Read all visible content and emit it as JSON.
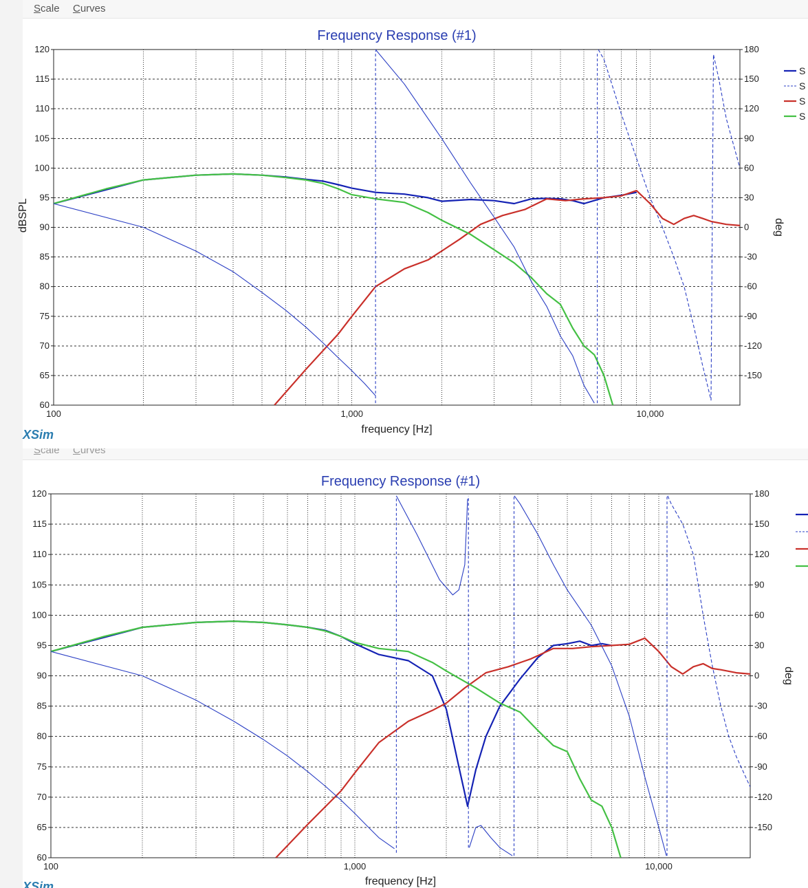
{
  "menu": {
    "scale_label": "Scale",
    "scale_key": "S",
    "scale_rest": "cale",
    "curves_label": "Curves",
    "curves_key": "C",
    "curves_rest": "urves"
  },
  "app_brand_top": "XSim",
  "app_brand_bottom": "XSim",
  "colors": {
    "spl": "#1422b4",
    "phase": "#2a3ec4",
    "red": "#c9302a",
    "green": "#44c044",
    "title": "#2a3eb1"
  },
  "chart_data": [
    {
      "type": "line",
      "title": "Frequency Response (#1)",
      "xlabel": "frequency [Hz]",
      "ylabel": "dBSPL",
      "y2label": "deg",
      "xscale": "log",
      "xlim": [
        100,
        20000
      ],
      "ylim": [
        60,
        120
      ],
      "y2lim": [
        -180,
        180
      ],
      "yticks": [
        60,
        65,
        70,
        75,
        80,
        85,
        90,
        95,
        100,
        105,
        110,
        115,
        120
      ],
      "y2ticks": [
        -150,
        -120,
        -90,
        -60,
        -30,
        0,
        30,
        60,
        90,
        120,
        150,
        180
      ],
      "xticks": [
        {
          "value": 100,
          "label": "100"
        },
        {
          "value": 1000,
          "label": "1,000"
        },
        {
          "value": 10000,
          "label": "10,000"
        }
      ],
      "legend_position": "right",
      "legend_labels": [
        "S",
        "S",
        "S",
        "S"
      ],
      "series": [
        {
          "color": "#1422b4",
          "width": 2.2,
          "dash": "",
          "axis": "left",
          "x": [
            100,
            200,
            300,
            400,
            500,
            600,
            700,
            800,
            900,
            1000,
            1200,
            1500,
            1800,
            2000,
            2500,
            3000,
            3500,
            4000,
            4500,
            5000,
            5500,
            6000,
            7000,
            8000,
            9000
          ],
          "y": [
            94,
            98,
            98.8,
            99,
            98.8,
            98.5,
            98.1,
            97.8,
            97.2,
            96.6,
            95.9,
            95.6,
            95.0,
            94.4,
            94.7,
            94.5,
            94.0,
            94.8,
            94.9,
            94.8,
            94.5,
            94.0,
            95.0,
            95.4,
            95.9
          ]
        },
        {
          "color": "#2a3ec4",
          "width": 1.1,
          "dash": "5,3",
          "axis": "right",
          "x": [
            6700,
            7000,
            8000,
            9000,
            10000,
            11000,
            12000,
            13000,
            14000,
            15000,
            16000,
            16300,
            17000,
            18000,
            20000
          ],
          "y": [
            180,
            170,
            115,
            70,
            30,
            0,
            -30,
            -60,
            -100,
            -140,
            -175,
            175,
            150,
            110,
            60
          ]
        },
        {
          "color": "#c9302a",
          "width": 2.2,
          "dash": "",
          "axis": "left",
          "x": [
            550,
            700,
            900,
            1000,
            1200,
            1500,
            1800,
            2000,
            2300,
            2700,
            3200,
            3800,
            4500,
            5200,
            6000,
            7000,
            8000,
            9000,
            10000,
            11000,
            12000,
            13000,
            14000,
            15000,
            16000,
            18000,
            20000
          ],
          "y": [
            60,
            66,
            72,
            75,
            80,
            83,
            84.5,
            86,
            88,
            90.5,
            92,
            93,
            94.8,
            94.5,
            94.8,
            95.0,
            95.3,
            96.2,
            94.0,
            91.5,
            90.5,
            91.5,
            92.0,
            91.5,
            91.0,
            90.5,
            90.3
          ]
        },
        {
          "color": "#44c044",
          "width": 2.2,
          "dash": "",
          "axis": "left",
          "x": [
            100,
            150,
            200,
            300,
            400,
            500,
            600,
            700,
            800,
            900,
            1000,
            1200,
            1500,
            1800,
            2000,
            2500,
            3000,
            3500,
            4000,
            4500,
            5000,
            5500,
            6000,
            6500,
            7000,
            7500
          ],
          "y": [
            94,
            96.5,
            98,
            98.8,
            99,
            98.8,
            98.4,
            98,
            97.4,
            96.5,
            95.5,
            94.8,
            94.2,
            92.5,
            91.2,
            88.8,
            86.2,
            84.0,
            81.5,
            78.8,
            77.0,
            73.0,
            70.0,
            68.5,
            65.0,
            60.0
          ]
        },
        {
          "color": "#2a3ec4",
          "width": 1.1,
          "dash": "",
          "axis": "left",
          "x": [
            100,
            200,
            300,
            400,
            500,
            600,
            700,
            800,
            900,
            1000,
            1100,
            1200
          ],
          "y": [
            94,
            90,
            86,
            82.5,
            79,
            76,
            73.2,
            70.5,
            68,
            65.8,
            63.7,
            61.6
          ]
        },
        {
          "color": "#2a3ec4",
          "width": 1.1,
          "dash": "",
          "axis": "right",
          "x": [
            1200,
            1500,
            2000,
            2500,
            3000,
            3500,
            4000,
            4500,
            5000,
            5500,
            6000,
            6500
          ],
          "y": [
            180,
            145,
            90,
            45,
            10,
            -20,
            -55,
            -80,
            -110,
            -130,
            -160,
            -178
          ]
        },
        {
          "color": "#2a3ec4",
          "width": 1.1,
          "dash": "4,3",
          "axis": "right",
          "x": [
            1200,
            1200,
            1210
          ],
          "y": [
            -178,
            178,
            180
          ]
        },
        {
          "color": "#2a3ec4",
          "width": 1.1,
          "dash": "4,3",
          "axis": "right",
          "x": [
            6650,
            6650
          ],
          "y": [
            -178,
            178
          ]
        }
      ]
    },
    {
      "type": "line",
      "title": "Frequency Response (#1)",
      "xlabel": "frequency [Hz]",
      "ylabel": "",
      "y2label": "deg",
      "xscale": "log",
      "xlim": [
        100,
        20000
      ],
      "ylim": [
        60,
        120
      ],
      "y2lim": [
        -180,
        180
      ],
      "yticks": [
        60,
        65,
        70,
        75,
        80,
        85,
        90,
        95,
        100,
        105,
        110,
        115,
        120
      ],
      "y2ticks": [
        -150,
        -120,
        -90,
        -60,
        -30,
        0,
        30,
        60,
        90,
        120,
        150,
        180
      ],
      "xticks": [
        {
          "value": 100,
          "label": "100"
        },
        {
          "value": 1000,
          "label": "1,000"
        },
        {
          "value": 10000,
          "label": "10,000"
        }
      ],
      "legend_position": "right",
      "legend_labels": [
        "",
        "",
        "",
        ""
      ],
      "series": [
        {
          "color": "#1422b4",
          "width": 2.2,
          "dash": "",
          "axis": "left",
          "x": [
            100,
            200,
            300,
            400,
            500,
            600,
            700,
            800,
            900,
            1000,
            1200,
            1500,
            1800,
            2000,
            2200,
            2350,
            2500,
            2700,
            3000,
            3500,
            4000,
            4500,
            5000,
            5500,
            6000,
            6500,
            7000
          ],
          "y": [
            94,
            98,
            98.8,
            99,
            98.8,
            98.4,
            98,
            97.5,
            96.5,
            95.3,
            93.5,
            92.5,
            90.0,
            84.5,
            75.0,
            68.5,
            74.5,
            80.0,
            85.0,
            89.5,
            93.0,
            95.0,
            95.3,
            95.7,
            95.0,
            95.3,
            95.0
          ]
        },
        {
          "color": "#2a3ec4",
          "width": 1.1,
          "dash": "5,3",
          "axis": "right",
          "x": [
            10700,
            11000,
            12000,
            13000,
            14000,
            15000,
            16000,
            17000,
            18000,
            20000
          ],
          "y": [
            178,
            170,
            150,
            120,
            60,
            10,
            -30,
            -60,
            -80,
            -110
          ]
        },
        {
          "color": "#c9302a",
          "width": 2.2,
          "dash": "",
          "axis": "left",
          "x": [
            550,
            700,
            900,
            1000,
            1200,
            1500,
            1800,
            2000,
            2300,
            2700,
            3200,
            3800,
            4500,
            5200,
            6000,
            7000,
            8000,
            9000,
            10000,
            11000,
            12000,
            13000,
            14000,
            15000,
            16000,
            18000,
            20000
          ],
          "y": [
            60,
            65.5,
            71,
            74,
            79,
            82.5,
            84.3,
            85.5,
            88,
            90.5,
            91.5,
            92.8,
            94.5,
            94.5,
            94.8,
            95.0,
            95.2,
            96.2,
            94.0,
            91.5,
            90.3,
            91.5,
            92.0,
            91.2,
            91.0,
            90.5,
            90.3
          ]
        },
        {
          "color": "#44c044",
          "width": 2.2,
          "dash": "",
          "axis": "left",
          "x": [
            100,
            150,
            200,
            300,
            400,
            500,
            600,
            700,
            800,
            900,
            1000,
            1200,
            1500,
            1800,
            2000,
            2500,
            3000,
            3500,
            4000,
            4500,
            5000,
            5500,
            6000,
            6500,
            7000,
            7500
          ],
          "y": [
            94,
            96.5,
            98,
            98.8,
            99,
            98.8,
            98.4,
            98,
            97.4,
            96.5,
            95.5,
            94.5,
            94.0,
            92.2,
            90.8,
            88.0,
            85.5,
            84.0,
            81.0,
            78.5,
            77.5,
            73.0,
            69.5,
            68.5,
            65.0,
            60.0
          ]
        },
        {
          "color": "#2a3ec4",
          "width": 1.1,
          "dash": "",
          "axis": "left",
          "x": [
            100,
            200,
            300,
            400,
            500,
            600,
            700,
            800,
            900,
            1000,
            1100,
            1200,
            1350
          ],
          "y": [
            94,
            90,
            86,
            82.5,
            79.5,
            76.8,
            74.2,
            71.8,
            69.5,
            67.3,
            65.2,
            63.3,
            61.5
          ]
        },
        {
          "color": "#2a3ec4",
          "width": 1.1,
          "dash": "",
          "axis": "right",
          "x": [
            1370,
            1600,
            1900,
            2100,
            2200,
            2300,
            2350
          ],
          "y": [
            178,
            140,
            95,
            80,
            85,
            110,
            175
          ]
        },
        {
          "color": "#2a3ec4",
          "width": 1.1,
          "dash": "",
          "axis": "right",
          "x": [
            2380,
            2500,
            2600,
            2800,
            3000,
            3300
          ],
          "y": [
            -170,
            -150,
            -148,
            -160,
            -170,
            -178
          ]
        },
        {
          "color": "#2a3ec4",
          "width": 1.1,
          "dash": "",
          "axis": "right",
          "x": [
            3350,
            3500,
            4000,
            4500,
            5000,
            6000,
            7000,
            8000,
            9000,
            10000,
            10600
          ],
          "y": [
            178,
            170,
            140,
            110,
            85,
            50,
            10,
            -40,
            -100,
            -150,
            -178
          ]
        },
        {
          "color": "#2a3ec4",
          "width": 1.1,
          "dash": "4,3",
          "axis": "right",
          "x": [
            1370,
            1370
          ],
          "y": [
            -175,
            178
          ]
        },
        {
          "color": "#2a3ec4",
          "width": 1.1,
          "dash": "4,3",
          "axis": "right",
          "x": [
            2365,
            2365
          ],
          "y": [
            -170,
            178
          ]
        },
        {
          "color": "#2a3ec4",
          "width": 1.1,
          "dash": "4,3",
          "axis": "right",
          "x": [
            3340,
            3340
          ],
          "y": [
            -178,
            178
          ]
        },
        {
          "color": "#2a3ec4",
          "width": 1.1,
          "dash": "4,3",
          "axis": "right",
          "x": [
            10650,
            10650
          ],
          "y": [
            -178,
            178
          ]
        }
      ]
    }
  ]
}
